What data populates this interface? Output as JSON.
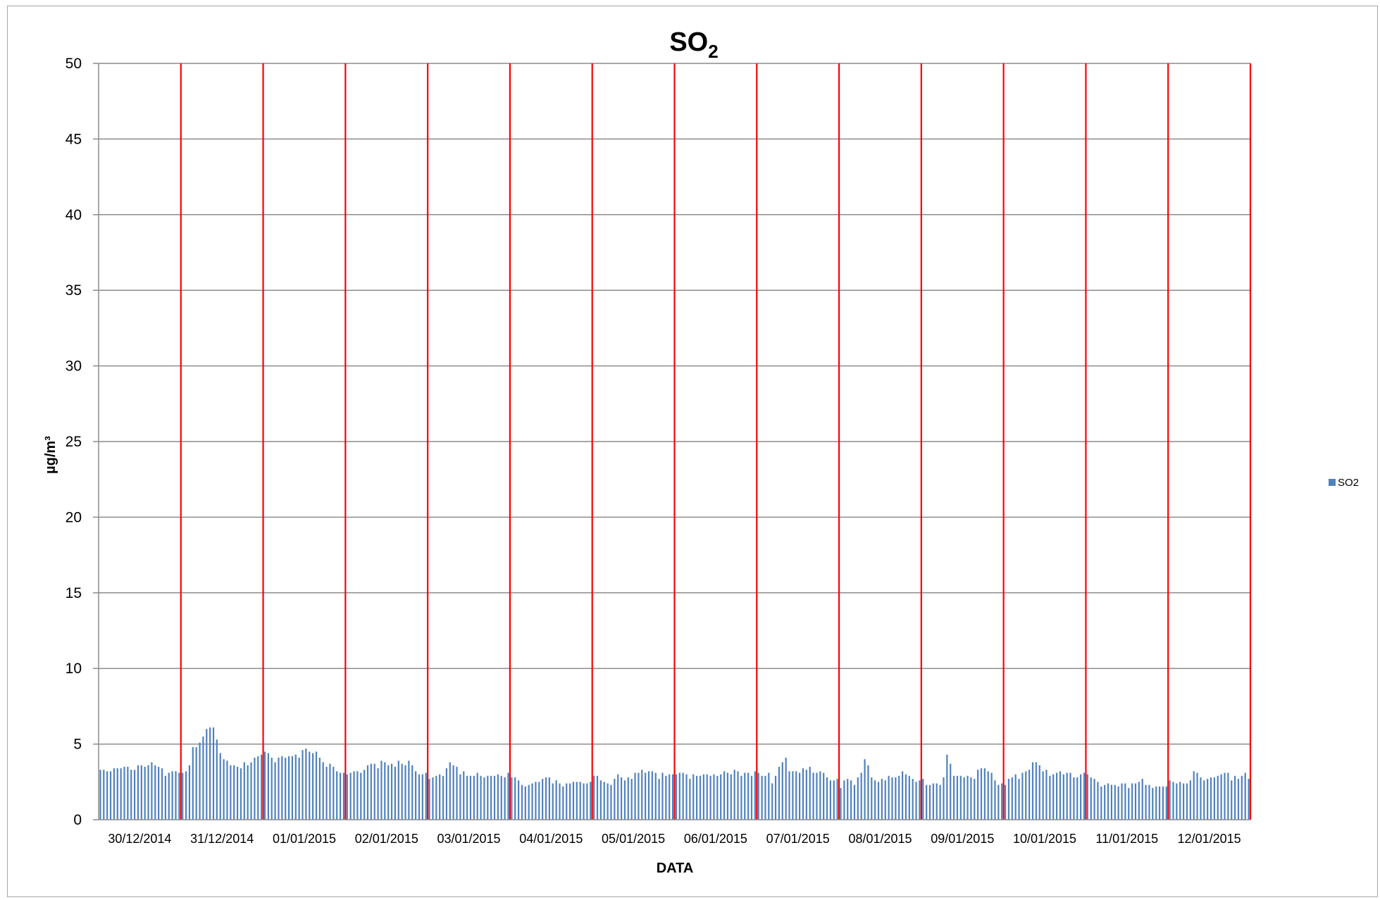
{
  "chart_data": {
    "type": "bar",
    "title": "SO",
    "title_subscript": "2",
    "xlabel": "DATA",
    "ylabel": "µg/m³",
    "ylim": [
      0,
      50
    ],
    "y_ticks": [
      "0",
      "5",
      "10",
      "15",
      "20",
      "25",
      "30",
      "35",
      "40",
      "45",
      "50"
    ],
    "grid": true,
    "legend_position": "right",
    "day_separator_color": "#ff0000",
    "categories": [
      "30/12/2014",
      "31/12/2014",
      "01/01/2015",
      "02/01/2015",
      "03/01/2015",
      "04/01/2015",
      "05/01/2015",
      "06/01/2015",
      "07/01/2015",
      "08/01/2015",
      "09/01/2015",
      "10/01/2015",
      "11/01/2015",
      "12/01/2015"
    ],
    "series": [
      {
        "name": "SO2",
        "color": "#4f81bd",
        "values_per_day": [
          [
            3.3,
            3.3,
            3.2,
            3.2,
            3.4,
            3.4,
            3.4,
            3.5,
            3.5,
            3.3,
            3.3,
            3.6,
            3.6,
            3.5,
            3.6,
            3.8,
            3.6,
            3.5,
            3.4,
            2.9,
            3.1,
            3.2,
            3.2,
            3.1
          ],
          [
            3.1,
            3.2,
            3.6,
            4.8,
            4.8,
            5.1,
            5.5,
            6.0,
            6.1,
            6.1,
            5.3,
            4.4,
            4.0,
            3.9,
            3.6,
            3.6,
            3.5,
            3.4,
            3.8,
            3.6,
            3.8,
            4.1,
            4.2,
            4.3
          ],
          [
            4.5,
            4.4,
            4.1,
            3.8,
            4.1,
            4.2,
            4.1,
            4.2,
            4.2,
            4.3,
            4.1,
            4.6,
            4.7,
            4.5,
            4.4,
            4.5,
            4.1,
            3.8,
            3.5,
            3.7,
            3.5,
            3.2,
            3.1,
            3.1
          ],
          [
            3.0,
            3.1,
            3.2,
            3.2,
            3.1,
            3.3,
            3.6,
            3.7,
            3.7,
            3.4,
            3.9,
            3.8,
            3.6,
            3.7,
            3.5,
            3.9,
            3.7,
            3.6,
            3.9,
            3.6,
            3.2,
            3.0,
            3.0,
            3.1
          ],
          [
            2.7,
            2.8,
            2.9,
            3.0,
            2.9,
            3.4,
            3.8,
            3.6,
            3.5,
            3.0,
            3.2,
            2.9,
            2.9,
            2.9,
            3.1,
            2.9,
            2.8,
            2.9,
            2.9,
            2.9,
            3.0,
            2.9,
            2.8,
            3.1
          ],
          [
            2.8,
            2.8,
            2.6,
            2.3,
            2.2,
            2.3,
            2.4,
            2.5,
            2.5,
            2.7,
            2.8,
            2.8,
            2.4,
            2.6,
            2.4,
            2.2,
            2.4,
            2.4,
            2.5,
            2.5,
            2.5,
            2.4,
            2.4,
            2.5
          ],
          [
            2.9,
            2.9,
            2.6,
            2.5,
            2.4,
            2.3,
            2.7,
            3.0,
            2.8,
            2.6,
            2.8,
            2.7,
            3.1,
            3.1,
            3.3,
            3.1,
            3.2,
            3.2,
            3.1,
            2.7,
            3.1,
            2.9,
            3.0,
            3.0
          ],
          [
            3.0,
            3.1,
            3.1,
            3.0,
            2.7,
            3.0,
            2.9,
            2.9,
            3.0,
            3.0,
            2.9,
            3.0,
            2.9,
            3.0,
            3.2,
            3.1,
            3.0,
            3.3,
            3.2,
            2.9,
            3.1,
            3.1,
            2.9,
            3.2
          ],
          [
            3.1,
            2.9,
            2.9,
            3.1,
            2.4,
            2.9,
            3.5,
            3.8,
            4.1,
            3.2,
            3.2,
            3.2,
            3.1,
            3.4,
            3.3,
            3.5,
            3.1,
            3.1,
            3.2,
            3.1,
            2.8,
            2.6,
            2.6,
            2.7
          ],
          [
            2.1,
            2.6,
            2.7,
            2.6,
            2.3,
            2.8,
            3.1,
            4.0,
            3.6,
            2.8,
            2.6,
            2.5,
            2.7,
            2.6,
            2.9,
            2.8,
            2.8,
            2.9,
            3.2,
            3.0,
            2.9,
            2.7,
            2.5,
            2.6
          ],
          [
            2.7,
            2.3,
            2.3,
            2.4,
            2.4,
            2.3,
            2.8,
            4.3,
            3.7,
            2.9,
            2.9,
            2.9,
            2.8,
            2.9,
            2.8,
            2.7,
            3.3,
            3.4,
            3.4,
            3.2,
            3.1,
            2.6,
            2.3,
            2.4
          ],
          [
            2.3,
            2.7,
            2.8,
            3.0,
            2.7,
            3.1,
            3.2,
            3.3,
            3.8,
            3.8,
            3.6,
            3.2,
            3.3,
            2.9,
            3.0,
            3.1,
            3.2,
            3.0,
            3.1,
            3.1,
            2.8,
            2.8,
            3.0,
            3.1
          ],
          [
            3.0,
            2.8,
            2.7,
            2.5,
            2.2,
            2.3,
            2.4,
            2.3,
            2.3,
            2.2,
            2.4,
            2.4,
            2.1,
            2.4,
            2.4,
            2.5,
            2.7,
            2.3,
            2.3,
            2.1,
            2.2,
            2.2,
            2.2,
            2.2
          ],
          [
            2.6,
            2.5,
            2.4,
            2.5,
            2.4,
            2.4,
            2.6,
            3.2,
            3.1,
            2.8,
            2.6,
            2.7,
            2.8,
            2.8,
            2.9,
            3.0,
            3.1,
            3.1,
            2.6,
            2.9,
            2.7,
            2.9,
            3.1,
            2.7
          ]
        ]
      }
    ]
  }
}
